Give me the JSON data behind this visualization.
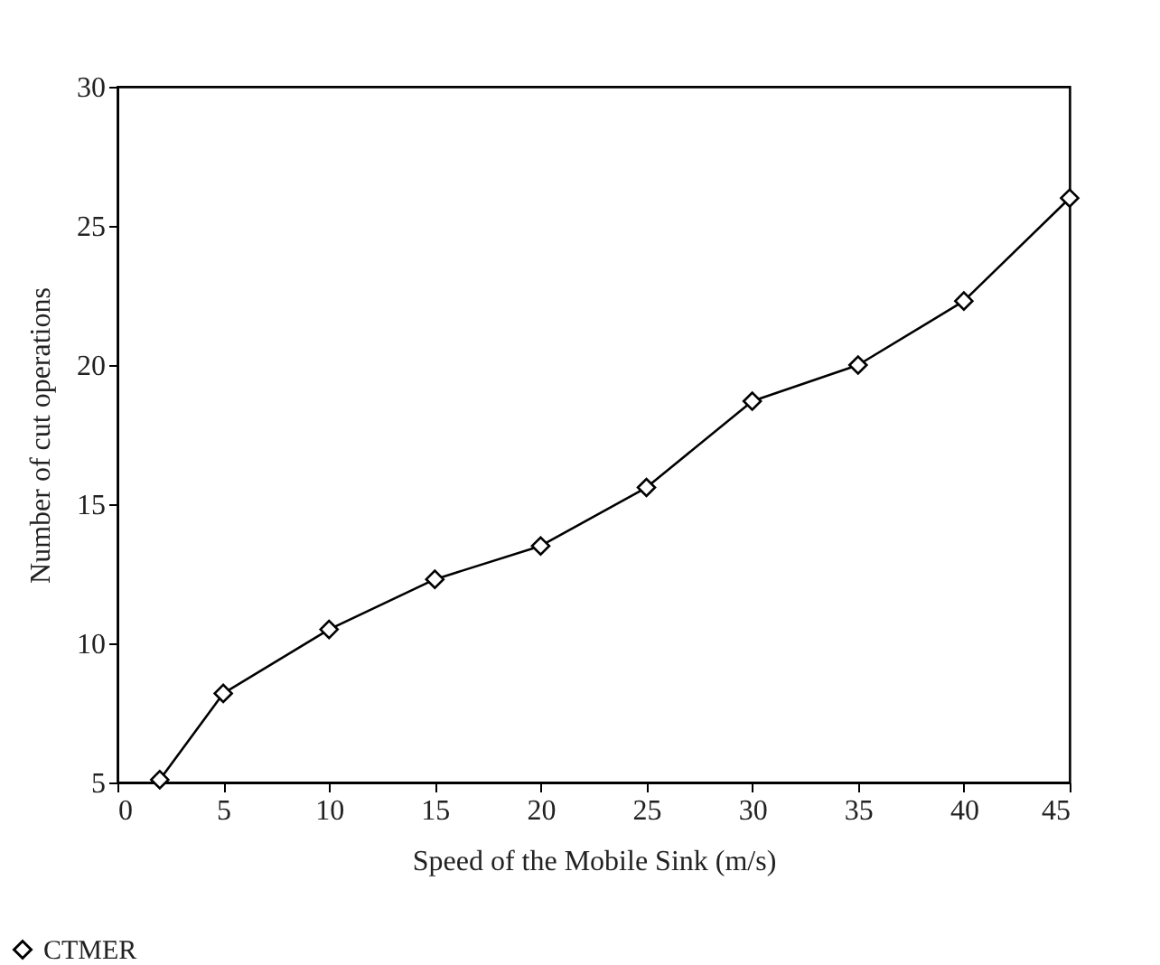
{
  "chart_data": {
    "type": "line",
    "xlabel": "Speed of the Mobile Sink (m/s)",
    "ylabel": "Number of cut operations",
    "x": [
      2,
      5,
      10,
      15,
      20,
      25,
      30,
      35,
      40,
      45
    ],
    "series": [
      {
        "name": "CTMER",
        "color": "#000000",
        "values": [
          5.1,
          8.2,
          10.5,
          12.3,
          13.5,
          15.6,
          18.7,
          20.0,
          22.3,
          26.0
        ]
      }
    ],
    "xlim": [
      0,
      45
    ],
    "ylim": [
      5,
      30
    ],
    "xticks": [
      0,
      5,
      10,
      15,
      20,
      25,
      30,
      35,
      40,
      45
    ],
    "yticks": [
      5,
      10,
      15,
      20,
      25,
      30
    ],
    "grid": false,
    "legend": "bottom left",
    "marker": "diamond",
    "line_style": "solid"
  }
}
